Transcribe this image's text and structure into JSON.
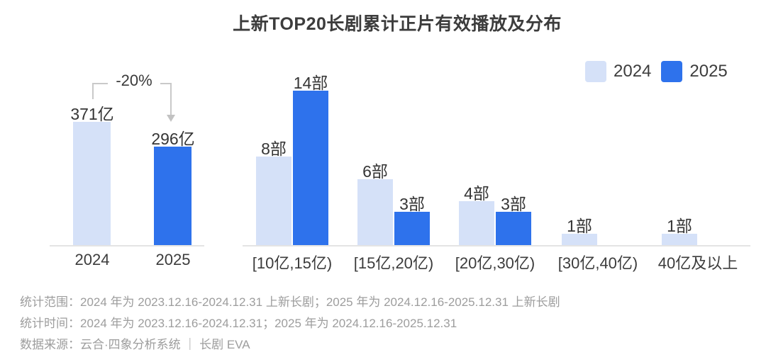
{
  "title": "上新TOP20长剧累计正片有效播放及分布",
  "legend": {
    "items": [
      {
        "label": "2024",
        "color": "#D5E1F8"
      },
      {
        "label": "2025",
        "color": "#2E72EC"
      }
    ]
  },
  "chart_data": [
    {
      "type": "bar",
      "name": "top20-cumulative-effective-playback",
      "categories": [
        "2024",
        "2025"
      ],
      "values": [
        371,
        296
      ],
      "value_labels": [
        "371亿",
        "296亿"
      ],
      "unit": "亿",
      "bar_colors": [
        "#D5E1F8",
        "#2E72EC"
      ],
      "ylim": [
        0,
        371
      ],
      "grid": false,
      "annotation": {
        "text": "-20%",
        "from": "2024",
        "to": "2025"
      }
    },
    {
      "type": "bar",
      "name": "top20-distribution-by-playback-range",
      "categories": [
        "[10亿,15亿)",
        "[15亿,20亿)",
        "[20亿,30亿)",
        "[30亿,40亿)",
        "40亿及以上"
      ],
      "series": [
        {
          "name": "2024",
          "color": "#D5E1F8",
          "values": [
            8,
            6,
            4,
            1,
            1
          ]
        },
        {
          "name": "2025",
          "color": "#2E72EC",
          "values": [
            14,
            3,
            3,
            0,
            0
          ]
        }
      ],
      "unit": "部",
      "label_suffix": "部",
      "ylim": [
        0,
        14
      ],
      "grid": false,
      "legend_position": "top-right"
    }
  ],
  "footnotes": [
    "统计范围：2024 年为 2023.12.16-2024.12.31 上新长剧；2025 年为 2024.12.16-2025.12.31 上新长剧",
    "统计时间：2024 年为 2023.12.16-2024.12.31；2025 年为 2024.12.16-2025.12.31",
    "数据来源：云合·四象分析系统 ｜ 长剧 EVA"
  ],
  "colors": {
    "light_series": "#D5E1F8",
    "dark_series": "#2E72EC",
    "axis_line": "#e4e4e4",
    "annotation_line": "#c9c9c9",
    "label_text": "#353535",
    "footnote_text": "#9d9d9d",
    "title_text": "#3c3c3c"
  }
}
